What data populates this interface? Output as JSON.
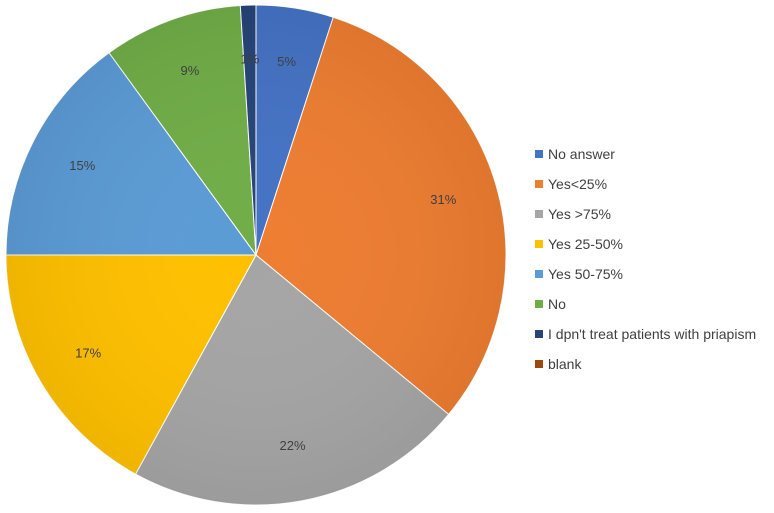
{
  "chart_data": {
    "type": "pie",
    "title": "",
    "legend_position": "right",
    "slices": [
      {
        "label": "No answer",
        "value": 5,
        "value_label": "5%",
        "color": "#4472C4"
      },
      {
        "label": "Yes<25%",
        "value": 31,
        "value_label": "31%",
        "color": "#ED7D31"
      },
      {
        "label": "Yes >75%",
        "value": 22,
        "value_label": "22%",
        "color": "#A5A5A5"
      },
      {
        "label": "Yes 25-50%",
        "value": 17,
        "value_label": "17%",
        "color": "#FFC000"
      },
      {
        "label": "Yes 50-75%",
        "value": 15,
        "value_label": "15%",
        "color": "#5B9BD5"
      },
      {
        "label": "No",
        "value": 9,
        "value_label": "9%",
        "color": "#70AD47"
      },
      {
        "label": "I dpn't treat patients with priapism",
        "value": 1,
        "value_label": "1%",
        "color": "#264478"
      },
      {
        "label": "blank",
        "value": 0,
        "value_label": "",
        "color": "#9E480E"
      }
    ]
  }
}
